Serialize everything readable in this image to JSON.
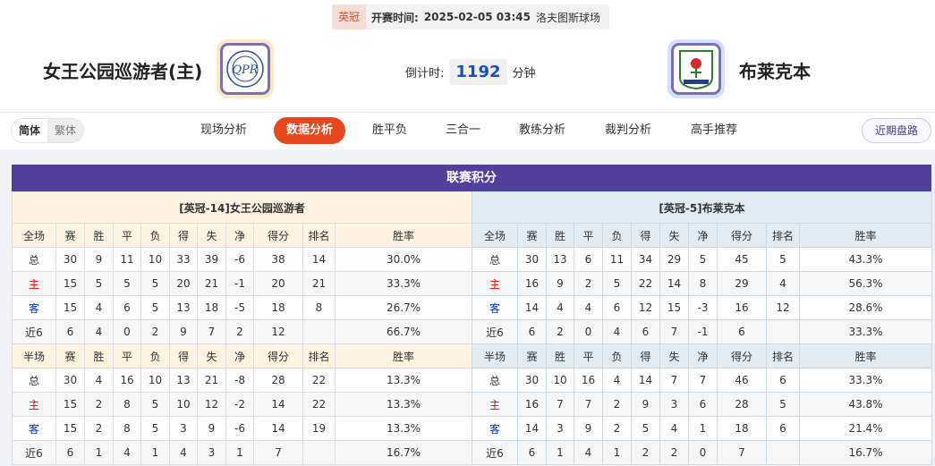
{
  "match": {
    "league": "英冠",
    "time_label": "开赛时间:",
    "time": "2025-02-05 03:45",
    "venue": "洛夫图斯球场"
  },
  "home_team": {
    "name": "女王公园巡游者(主)",
    "logo": "QPR crest"
  },
  "away_team": {
    "name": "布莱克本",
    "logo": "Blackburn Rovers crest"
  },
  "countdown": {
    "label": "倒计时:",
    "value": "1192",
    "unit": "分钟"
  },
  "lang": {
    "simplified": "简体",
    "traditional": "繁体"
  },
  "tabs": [
    {
      "label": "现场分析"
    },
    {
      "label": "数据分析",
      "active": true
    },
    {
      "label": "胜平负"
    },
    {
      "label": "三合一"
    },
    {
      "label": "教练分析"
    },
    {
      "label": "裁判分析"
    },
    {
      "label": "高手推荐"
    }
  ],
  "recent_button": "近期盘路",
  "standings": {
    "title": "联赛积分",
    "columns_full": [
      "全场",
      "赛",
      "胜",
      "平",
      "负",
      "得",
      "失",
      "净",
      "得分",
      "排名",
      "胜率"
    ],
    "columns_half": [
      "半场",
      "赛",
      "胜",
      "平",
      "负",
      "得",
      "失",
      "净",
      "得分",
      "排名",
      "胜率"
    ],
    "colors": {
      "home": "#ee0000",
      "away": "#0033cc",
      "header": "#523f9b"
    },
    "home": {
      "title": "[英冠-14]女王公园巡游者",
      "full": [
        [
          "总",
          "30",
          "9",
          "11",
          "10",
          "33",
          "39",
          "-6",
          "38",
          "14",
          "30.0%"
        ],
        [
          "主",
          "15",
          "5",
          "5",
          "5",
          "20",
          "21",
          "-1",
          "20",
          "21",
          "33.3%"
        ],
        [
          "客",
          "15",
          "4",
          "6",
          "5",
          "13",
          "18",
          "-5",
          "18",
          "8",
          "26.7%"
        ],
        [
          "近6",
          "6",
          "4",
          "0",
          "2",
          "9",
          "7",
          "2",
          "12",
          "",
          "66.7%"
        ]
      ],
      "half": [
        [
          "总",
          "30",
          "4",
          "16",
          "10",
          "13",
          "21",
          "-8",
          "28",
          "22",
          "13.3%"
        ],
        [
          "主",
          "15",
          "2",
          "8",
          "5",
          "10",
          "12",
          "-2",
          "14",
          "22",
          "13.3%"
        ],
        [
          "客",
          "15",
          "2",
          "8",
          "5",
          "3",
          "9",
          "-6",
          "14",
          "19",
          "13.3%"
        ],
        [
          "近6",
          "6",
          "1",
          "4",
          "1",
          "4",
          "3",
          "1",
          "7",
          "",
          "16.7%"
        ]
      ]
    },
    "away": {
      "title": "[英冠-5]布莱克本",
      "full": [
        [
          "总",
          "30",
          "13",
          "6",
          "11",
          "34",
          "29",
          "5",
          "45",
          "5",
          "43.3%"
        ],
        [
          "主",
          "16",
          "9",
          "2",
          "5",
          "22",
          "14",
          "8",
          "29",
          "4",
          "56.3%"
        ],
        [
          "客",
          "14",
          "4",
          "4",
          "6",
          "12",
          "15",
          "-3",
          "16",
          "12",
          "28.6%"
        ],
        [
          "近6",
          "6",
          "2",
          "0",
          "4",
          "6",
          "7",
          "-1",
          "6",
          "",
          "33.3%"
        ]
      ],
      "half": [
        [
          "总",
          "30",
          "10",
          "16",
          "4",
          "14",
          "7",
          "7",
          "46",
          "6",
          "33.3%"
        ],
        [
          "主",
          "16",
          "7",
          "7",
          "2",
          "9",
          "3",
          "6",
          "28",
          "5",
          "43.8%"
        ],
        [
          "客",
          "14",
          "3",
          "9",
          "2",
          "5",
          "4",
          "1",
          "18",
          "6",
          "21.4%"
        ],
        [
          "近6",
          "6",
          "1",
          "4",
          "1",
          "2",
          "2",
          "0",
          "7",
          "",
          "16.7%"
        ]
      ]
    }
  }
}
